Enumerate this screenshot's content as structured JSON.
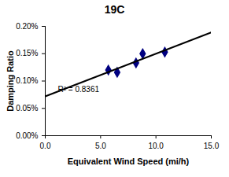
{
  "chart_data": {
    "type": "scatter",
    "title": "19C",
    "x_label": "Equivalent Wind Speed (mi/h)",
    "y_label": "Damping Ratio",
    "xlim": [
      0,
      15
    ],
    "ylim": [
      0,
      0.2
    ],
    "xticks": [
      {
        "value": 0,
        "label": "0.0"
      },
      {
        "value": 5,
        "label": "5.0"
      },
      {
        "value": 10,
        "label": "10.0"
      },
      {
        "value": 15,
        "label": "15.0"
      }
    ],
    "yticks": [
      {
        "value": 0,
        "label": "0.00%"
      },
      {
        "value": 0.05,
        "label": "0.05%"
      },
      {
        "value": 0.1,
        "label": "0.10%"
      },
      {
        "value": 0.15,
        "label": "0.15%"
      },
      {
        "value": 0.2,
        "label": "0.20%"
      }
    ],
    "grid": false,
    "annotation": "R² = 0.8361",
    "series": [
      {
        "type": "scatter",
        "color": "#000080",
        "marker": "diamond",
        "x": [
          5.7,
          6.5,
          8.2,
          8.8,
          10.8
        ],
        "values": [
          0.12,
          0.116,
          0.133,
          0.15,
          0.153
        ]
      },
      {
        "type": "line",
        "color": "#000000",
        "line_style": "solid",
        "x": [
          0,
          15
        ],
        "values": [
          0.072,
          0.189
        ]
      }
    ]
  }
}
